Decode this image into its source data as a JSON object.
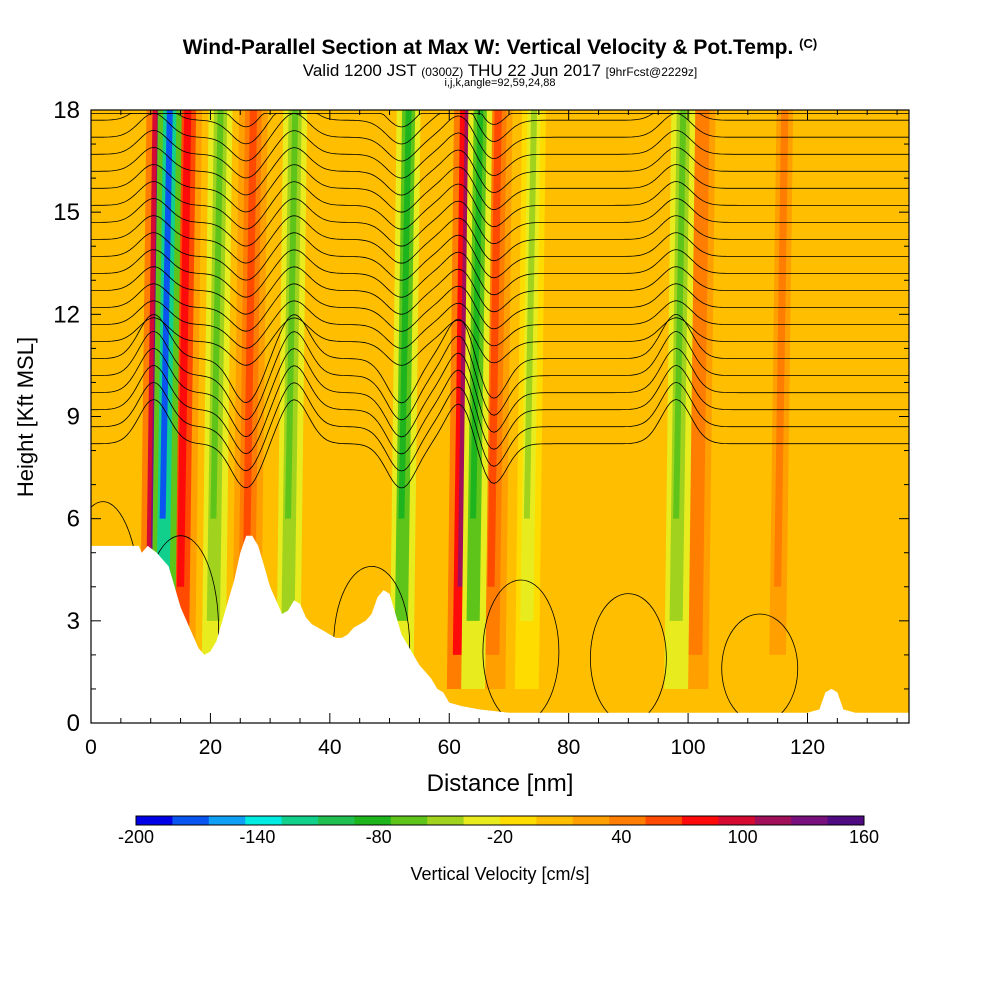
{
  "header": {
    "title": "Wind-Parallel Section at Max W: Vertical Velocity & Pot.Temp.",
    "copyright": "(C)",
    "valid_pre": "Valid 1200 JST",
    "valid_small": "(0300Z)",
    "valid_date": "THU 22 Jun 2017",
    "forecast": "[9hrFcst@2229z]",
    "grid_info": "i,j,k,angle=92,59,24,88"
  },
  "chart_data": {
    "type": "heatmap",
    "xlabel": "Distance [nm]",
    "ylabel": "Height [Kft MSL]",
    "xlim": [
      0,
      137
    ],
    "ylim": [
      0,
      18
    ],
    "xticks": [
      0,
      20,
      40,
      60,
      80,
      100,
      120
    ],
    "yticks": [
      0,
      3,
      6,
      9,
      12,
      15,
      18
    ],
    "colorbar": {
      "label": "Vertical Velocity [cm/s]",
      "min": -200,
      "max": 160,
      "ticks": [
        -200,
        -140,
        -80,
        -20,
        40,
        100,
        160
      ],
      "colors": [
        "#0000e6",
        "#0a55f0",
        "#0fa0f5",
        "#00ebe1",
        "#10d08c",
        "#20c050",
        "#1eb41e",
        "#5fc41a",
        "#a0d21e",
        "#e8ec1e",
        "#ffdc00",
        "#ffbe00",
        "#ffa000",
        "#ff7d00",
        "#ff4a00",
        "#ff0a0a",
        "#d40a32",
        "#a0105a",
        "#78107e",
        "#500a82"
      ]
    },
    "updraft_columns": [
      {
        "x": 10.5,
        "w": 130
      },
      {
        "x": 15,
        "w": 80
      },
      {
        "x": 26,
        "w": 60
      },
      {
        "x": 62,
        "w": 110
      },
      {
        "x": 67,
        "w": 60
      },
      {
        "x": 101,
        "w": 50
      },
      {
        "x": 115,
        "w": 45
      }
    ],
    "downdraft_columns": [
      {
        "x": 12,
        "w": -170
      },
      {
        "x": 20.5,
        "w": -70
      },
      {
        "x": 33,
        "w": -60
      },
      {
        "x": 52,
        "w": -80
      },
      {
        "x": 64,
        "w": -75
      },
      {
        "x": 73,
        "w": -50
      },
      {
        "x": 98,
        "w": -70
      }
    ],
    "terrain": [
      [
        0,
        5.2
      ],
      [
        8,
        5.2
      ],
      [
        8.5,
        5.0
      ],
      [
        9.5,
        5.2
      ],
      [
        11,
        5.0
      ],
      [
        12,
        4.8
      ],
      [
        13,
        4.6
      ],
      [
        14,
        4.0
      ],
      [
        15,
        3.4
      ],
      [
        16,
        3.0
      ],
      [
        17,
        2.6
      ],
      [
        18,
        2.2
      ],
      [
        19,
        2.0
      ],
      [
        20,
        2.1
      ],
      [
        21,
        2.4
      ],
      [
        22,
        3.0
      ],
      [
        23,
        3.6
      ],
      [
        24,
        4.2
      ],
      [
        25,
        5.0
      ],
      [
        26,
        5.5
      ],
      [
        27,
        5.5
      ],
      [
        28,
        5.2
      ],
      [
        29,
        4.6
      ],
      [
        30,
        4.0
      ],
      [
        31,
        3.6
      ],
      [
        32,
        3.2
      ],
      [
        33,
        3.3
      ],
      [
        34,
        3.6
      ],
      [
        35,
        3.5
      ],
      [
        36,
        3.1
      ],
      [
        37,
        2.9
      ],
      [
        38,
        2.8
      ],
      [
        39,
        2.7
      ],
      [
        40,
        2.6
      ],
      [
        41,
        2.5
      ],
      [
        42,
        2.5
      ],
      [
        43,
        2.6
      ],
      [
        44,
        2.8
      ],
      [
        45,
        2.9
      ],
      [
        46,
        3.0
      ],
      [
        47,
        3.2
      ],
      [
        48,
        3.7
      ],
      [
        49,
        3.9
      ],
      [
        50,
        3.8
      ],
      [
        51,
        3.2
      ],
      [
        52,
        2.6
      ],
      [
        53,
        2.3
      ],
      [
        54,
        2.0
      ],
      [
        55,
        1.7
      ],
      [
        56,
        1.5
      ],
      [
        57,
        1.3
      ],
      [
        58,
        1.0
      ],
      [
        59,
        0.9
      ],
      [
        60,
        0.6
      ],
      [
        62,
        0.5
      ],
      [
        65,
        0.4
      ],
      [
        70,
        0.3
      ],
      [
        120,
        0.3
      ],
      [
        122,
        0.4
      ],
      [
        123,
        0.9
      ],
      [
        124,
        1.0
      ],
      [
        125,
        0.9
      ],
      [
        126,
        0.4
      ],
      [
        128,
        0.3
      ],
      [
        137,
        0.3
      ]
    ],
    "theta_contour_levels": [
      24,
      26,
      28,
      30,
      32,
      34,
      36,
      38,
      40,
      42,
      44,
      46,
      48,
      50,
      52,
      54,
      56,
      58,
      60,
      62,
      64
    ]
  }
}
